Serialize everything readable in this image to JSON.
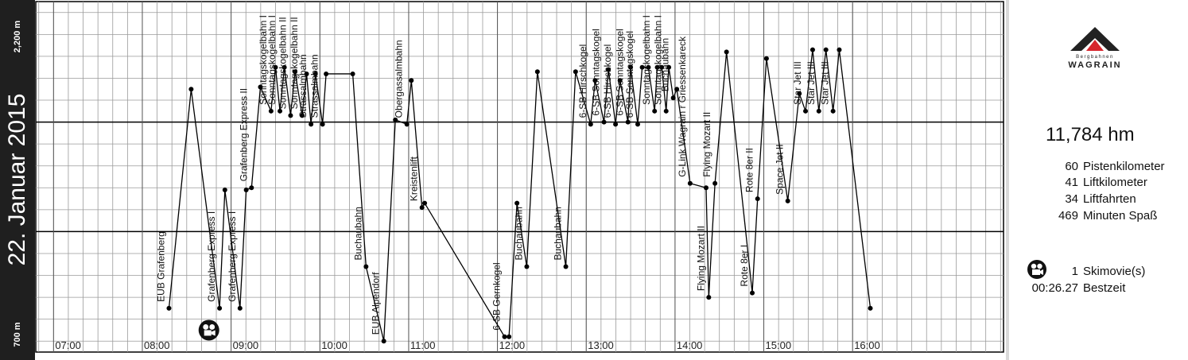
{
  "date_label": "22. Januar 2015",
  "y_axis": {
    "top_label": "2,200 m",
    "bottom_label": "700 m"
  },
  "summary": {
    "height_meters": "11,784 hm",
    "stats": [
      {
        "value": "60",
        "label": "Pistenkilometer"
      },
      {
        "value": "41",
        "label": "Liftkilometer"
      },
      {
        "value": "34",
        "label": "Liftfahrten"
      },
      {
        "value": "469",
        "label": "Minuten Spaß"
      }
    ],
    "movies": {
      "value": "1",
      "label": "Skimovie(s)"
    },
    "best_time": {
      "value": "00:26.27",
      "label": "Bestzeit"
    }
  },
  "logo": {
    "brand": "WAGRAIN",
    "sub": "Bergbahnen"
  },
  "colors": {
    "line": "#000000",
    "grid": "#9a9a9a",
    "date_bar": "#1f1f1f",
    "logo_red": "#d7262d"
  },
  "chart_data": {
    "type": "line",
    "xlim": [
      6.8,
      17.7
    ],
    "ylim": [
      650,
      2250
    ],
    "x_ticks": [
      "07:00",
      "08:00",
      "09:00",
      "10:00",
      "11:00",
      "12:00",
      "13:00",
      "14:00",
      "15:00",
      "16:00"
    ],
    "y_ticks": [
      "700 m",
      "2,200 m"
    ],
    "grid": true,
    "points": [
      {
        "t": 8.3,
        "alt": 850
      },
      {
        "t": 8.55,
        "alt": 1850
      },
      {
        "t": 8.87,
        "alt": 850
      },
      {
        "t": 8.93,
        "alt": 1390
      },
      {
        "t": 9.1,
        "alt": 850
      },
      {
        "t": 9.17,
        "alt": 1390
      },
      {
        "t": 9.23,
        "alt": 1400
      },
      {
        "t": 9.33,
        "alt": 1860
      },
      {
        "t": 9.45,
        "alt": 1750
      },
      {
        "t": 9.5,
        "alt": 1950
      },
      {
        "t": 9.55,
        "alt": 1750
      },
      {
        "t": 9.6,
        "alt": 1950
      },
      {
        "t": 9.67,
        "alt": 1730
      },
      {
        "t": 9.72,
        "alt": 1930
      },
      {
        "t": 9.8,
        "alt": 1730
      },
      {
        "t": 9.85,
        "alt": 1920
      },
      {
        "t": 9.9,
        "alt": 1690
      },
      {
        "t": 9.95,
        "alt": 1920
      },
      {
        "t": 10.03,
        "alt": 1690
      },
      {
        "t": 10.07,
        "alt": 1920
      },
      {
        "t": 10.37,
        "alt": 1920
      },
      {
        "t": 10.52,
        "alt": 1040
      },
      {
        "t": 10.72,
        "alt": 700
      },
      {
        "t": 10.85,
        "alt": 1710
      },
      {
        "t": 10.98,
        "alt": 1690
      },
      {
        "t": 11.03,
        "alt": 1890
      },
      {
        "t": 11.15,
        "alt": 1310
      },
      {
        "t": 11.18,
        "alt": 1330
      },
      {
        "t": 12.08,
        "alt": 720
      },
      {
        "t": 12.13,
        "alt": 720
      },
      {
        "t": 12.22,
        "alt": 1330
      },
      {
        "t": 12.33,
        "alt": 1040
      },
      {
        "t": 12.45,
        "alt": 1930
      },
      {
        "t": 12.77,
        "alt": 1040
      },
      {
        "t": 12.88,
        "alt": 1930
      },
      {
        "t": 13.05,
        "alt": 1690
      },
      {
        "t": 13.1,
        "alt": 1890
      },
      {
        "t": 13.2,
        "alt": 1700
      },
      {
        "t": 13.25,
        "alt": 1940
      },
      {
        "t": 13.33,
        "alt": 1690
      },
      {
        "t": 13.38,
        "alt": 1890
      },
      {
        "t": 13.47,
        "alt": 1700
      },
      {
        "t": 13.5,
        "alt": 1950
      },
      {
        "t": 13.58,
        "alt": 1690
      },
      {
        "t": 13.63,
        "alt": 1950
      },
      {
        "t": 13.7,
        "alt": 1950
      },
      {
        "t": 13.77,
        "alt": 1750
      },
      {
        "t": 13.8,
        "alt": 1950
      },
      {
        "t": 13.85,
        "alt": 1950
      },
      {
        "t": 13.9,
        "alt": 1750
      },
      {
        "t": 13.93,
        "alt": 1950
      },
      {
        "t": 13.98,
        "alt": 1810
      },
      {
        "t": 14.02,
        "alt": 1850
      },
      {
        "t": 14.17,
        "alt": 1420
      },
      {
        "t": 14.35,
        "alt": 1400
      },
      {
        "t": 14.38,
        "alt": 900
      },
      {
        "t": 14.45,
        "alt": 1420
      },
      {
        "t": 14.58,
        "alt": 2020
      },
      {
        "t": 14.87,
        "alt": 920
      },
      {
        "t": 14.93,
        "alt": 1350
      },
      {
        "t": 15.03,
        "alt": 1990
      },
      {
        "t": 15.27,
        "alt": 1340
      },
      {
        "t": 15.4,
        "alt": 1830
      },
      {
        "t": 15.47,
        "alt": 1750
      },
      {
        "t": 15.55,
        "alt": 2030
      },
      {
        "t": 15.62,
        "alt": 1750
      },
      {
        "t": 15.7,
        "alt": 2030
      },
      {
        "t": 15.78,
        "alt": 1750
      },
      {
        "t": 15.85,
        "alt": 2030
      },
      {
        "t": 16.2,
        "alt": 850
      }
    ],
    "lift_labels": [
      {
        "t": 8.3,
        "alt": 850,
        "text": "EUB Grafenberg"
      },
      {
        "t": 8.87,
        "alt": 850,
        "text": "Grafenberg Express I"
      },
      {
        "t": 9.1,
        "alt": 850,
        "text": "Grafenberg Express I"
      },
      {
        "t": 9.23,
        "alt": 1400,
        "text": "Grafenberg Express II"
      },
      {
        "t": 9.45,
        "alt": 1750,
        "text": "Sonntagskogelbahn I"
      },
      {
        "t": 9.55,
        "alt": 1750,
        "text": "Sonntagskogelbahn I"
      },
      {
        "t": 9.67,
        "alt": 1730,
        "text": "Sonntagskogelbahn II"
      },
      {
        "t": 9.8,
        "alt": 1730,
        "text": "Sonntagskogelbahn II"
      },
      {
        "t": 9.9,
        "alt": 1690,
        "text": "Strassalmbahn"
      },
      {
        "t": 10.03,
        "alt": 1690,
        "text": "Strassalmbahn"
      },
      {
        "t": 10.52,
        "alt": 1040,
        "text": "Buchaubahn"
      },
      {
        "t": 10.72,
        "alt": 700,
        "text": "EUB Alpendorf"
      },
      {
        "t": 10.98,
        "alt": 1690,
        "text": "Obergassalmbahn"
      },
      {
        "t": 11.15,
        "alt": 1310,
        "text": "Kreistenlift"
      },
      {
        "t": 12.08,
        "alt": 720,
        "text": "6-SB Gernkogel"
      },
      {
        "t": 12.33,
        "alt": 1040,
        "text": "Buchaubahn"
      },
      {
        "t": 12.77,
        "alt": 1040,
        "text": "Buchaubahn"
      },
      {
        "t": 13.05,
        "alt": 1690,
        "text": "6-SB Hirschkogel"
      },
      {
        "t": 13.2,
        "alt": 1700,
        "text": "6-SB Sonntagskogel"
      },
      {
        "t": 13.33,
        "alt": 1690,
        "text": "6-SB Hirschkogel"
      },
      {
        "t": 13.47,
        "alt": 1700,
        "text": "6-SB Sonntagskogel"
      },
      {
        "t": 13.58,
        "alt": 1690,
        "text": "6-SB Sonntagskogel"
      },
      {
        "t": 13.77,
        "alt": 1750,
        "text": "Sonntagskogelbahn I"
      },
      {
        "t": 13.9,
        "alt": 1750,
        "text": "Sonntagskogelbahn I"
      },
      {
        "t": 13.98,
        "alt": 1810,
        "text": "Buchaubahn"
      },
      {
        "t": 14.17,
        "alt": 1420,
        "text": "G-Link Wagrain r Griessenkareck"
      },
      {
        "t": 14.38,
        "alt": 900,
        "text": "Flying Mozart II"
      },
      {
        "t": 14.45,
        "alt": 1420,
        "text": "Flying Mozart II"
      },
      {
        "t": 14.87,
        "alt": 920,
        "text": "Rote 8er I"
      },
      {
        "t": 14.93,
        "alt": 1350,
        "text": "Rote 8er II"
      },
      {
        "t": 15.27,
        "alt": 1340,
        "text": "Space Jet II"
      },
      {
        "t": 15.47,
        "alt": 1750,
        "text": "Star Jet III"
      },
      {
        "t": 15.62,
        "alt": 1750,
        "text": "Star Jet III"
      },
      {
        "t": 15.78,
        "alt": 1750,
        "text": "Star Jet III"
      }
    ],
    "video_marker": {
      "t": 8.75,
      "alt": 750
    }
  }
}
